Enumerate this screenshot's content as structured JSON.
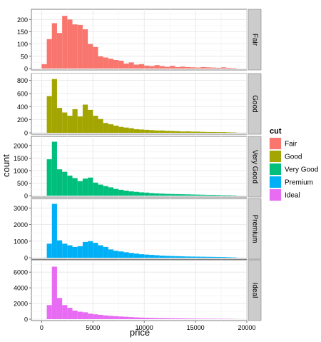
{
  "chart_data": {
    "type": "bar",
    "xlabel": "price",
    "ylabel": "count",
    "xlim": [
      -1000,
      20000
    ],
    "x_ticks": [
      0,
      5000,
      10000,
      15000,
      20000
    ],
    "bin_width": 500,
    "bin_starts": [
      0,
      500,
      1000,
      1500,
      2000,
      2500,
      3000,
      3500,
      4000,
      4500,
      5000,
      5500,
      6000,
      6500,
      7000,
      7500,
      8000,
      8500,
      9000,
      9500,
      10000,
      10500,
      11000,
      11500,
      12000,
      12500,
      13000,
      13500,
      14000,
      14500,
      15000,
      15500,
      16000,
      16500,
      17000,
      17500,
      18000,
      18500
    ],
    "legend": {
      "title": "cut",
      "placement": "right"
    },
    "facets": [
      {
        "label": "Fair",
        "color": "#F8766D",
        "ylim": [
          0,
          230
        ],
        "y_ticks": [
          0,
          50,
          100,
          150,
          200
        ],
        "values": [
          18,
          120,
          185,
          145,
          215,
          200,
          180,
          178,
          160,
          100,
          88,
          50,
          45,
          40,
          35,
          32,
          20,
          25,
          16,
          18,
          12,
          10,
          14,
          10,
          7,
          11,
          6,
          8,
          6,
          5,
          4,
          6,
          5,
          4,
          3,
          5,
          3,
          2
        ]
      },
      {
        "label": "Good",
        "color": "#A3A500",
        "ylim": [
          0,
          860
        ],
        "y_ticks": [
          0,
          200,
          400,
          600,
          800
        ],
        "values": [
          0,
          560,
          820,
          380,
          310,
          260,
          360,
          250,
          430,
          350,
          260,
          210,
          150,
          130,
          110,
          90,
          80,
          70,
          55,
          50,
          45,
          40,
          35,
          35,
          30,
          28,
          25,
          20,
          22,
          18,
          18,
          14,
          12,
          12,
          10,
          10,
          7,
          5
        ]
      },
      {
        "label": "Very Good",
        "color": "#00BF7D",
        "ylim": [
          0,
          2250
        ],
        "y_ticks": [
          0,
          500,
          1000,
          1500,
          2000
        ],
        "values": [
          0,
          1450,
          2150,
          1050,
          950,
          800,
          700,
          580,
          680,
          720,
          520,
          440,
          380,
          330,
          270,
          230,
          200,
          170,
          150,
          130,
          120,
          100,
          90,
          80,
          70,
          65,
          60,
          55,
          50,
          45,
          40,
          35,
          30,
          30,
          25,
          20,
          18,
          12
        ]
      },
      {
        "label": "Premium",
        "color": "#00B0F6",
        "ylim": [
          0,
          3400
        ],
        "y_ticks": [
          0,
          1000,
          2000,
          3000
        ],
        "values": [
          0,
          850,
          3250,
          1050,
          850,
          750,
          650,
          700,
          950,
          1000,
          900,
          750,
          650,
          500,
          420,
          380,
          330,
          290,
          250,
          210,
          190,
          170,
          150,
          130,
          115,
          105,
          95,
          85,
          75,
          70,
          65,
          60,
          55,
          50,
          45,
          40,
          30,
          20
        ]
      },
      {
        "label": "Ideal",
        "color": "#E76BF3",
        "ylim": [
          0,
          7200
        ],
        "y_ticks": [
          0,
          2000,
          4000,
          6000
        ],
        "values": [
          0,
          1800,
          6700,
          2700,
          1800,
          1450,
          1100,
          950,
          880,
          700,
          620,
          550,
          480,
          420,
          380,
          340,
          300,
          260,
          230,
          200,
          180,
          160,
          140,
          130,
          120,
          110,
          100,
          90,
          80,
          70,
          60,
          55,
          50,
          45,
          40,
          35,
          30,
          20
        ]
      }
    ]
  }
}
